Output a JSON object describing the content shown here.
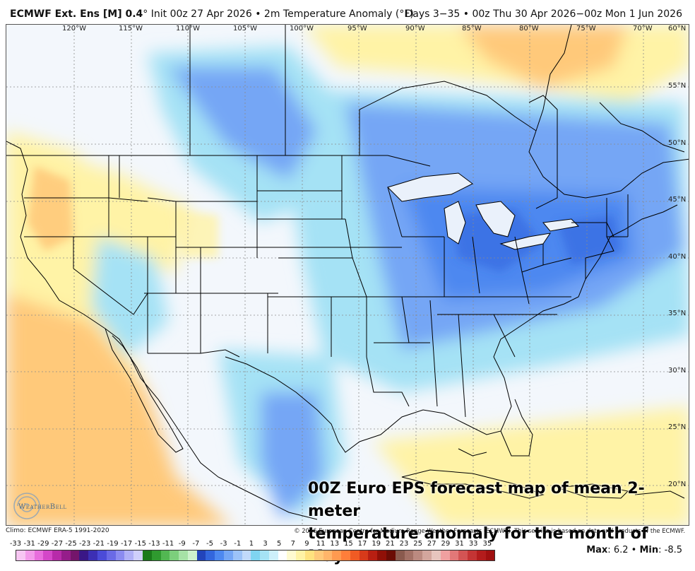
{
  "header": {
    "product": "ECMWF Ext. Ens [M] 0.4",
    "degree": "°",
    "init": "Init 00z 27 Apr 2026",
    "bullet": "•",
    "variable": "2m Temperature Anomaly (°F)",
    "valid": "Days 3−35 • 00z Thu 30 Apr 2026−00z Mon 1 Jun 2026"
  },
  "longitudes": [
    "120°W",
    "115°W",
    "110°W",
    "105°W",
    "100°W",
    "95°W",
    "90°W",
    "85°W",
    "80°W",
    "75°W",
    "70°W"
  ],
  "latitudes": [
    "60°N",
    "55°N",
    "50°N",
    "45°N",
    "40°N",
    "35°N",
    "30°N",
    "25°N",
    "20°N"
  ],
  "overlay": {
    "line1": "00Z Euro EPS forecast map of mean 2-meter",
    "line2": "temperature anomaly for the month of May"
  },
  "logo": {
    "text": "WeatherBell",
    "icon": "swirl-icon"
  },
  "footer": {
    "climo": "Climo: ECMWF ERA-5 1991-2020",
    "copyright": "© 2026 European Centre for Medium-Range Weather Forecasts (ECMWF). This service is based on data and products of the ECMWF."
  },
  "legend": {
    "labels": [
      "-33",
      "-31",
      "-29",
      "-27",
      "-25",
      "-23",
      "-21",
      "-19",
      "-17",
      "-15",
      "-13",
      "-11",
      "-9",
      "-7",
      "-5",
      "-3",
      "-1",
      "1",
      "3",
      "5",
      "7",
      "9",
      "11",
      "13",
      "15",
      "17",
      "19",
      "21",
      "23",
      "25",
      "27",
      "29",
      "31",
      "33",
      "35"
    ],
    "colors": [
      "#f7c6f2",
      "#f29ae9",
      "#e86ddc",
      "#d447c8",
      "#b72ba9",
      "#951d8a",
      "#74156b",
      "#3a1786",
      "#3c2fb4",
      "#4b4bd8",
      "#6a6ae6",
      "#8b8bf0",
      "#b0b0f6",
      "#cfcffb",
      "#1a7a1a",
      "#2f9a2f",
      "#52b752",
      "#7ccf7c",
      "#a6e2a6",
      "#cdf1cd",
      "#2244bb",
      "#3366dd",
      "#4d88f0",
      "#74a6f5",
      "#9cc3f8",
      "#c1dafb",
      "#7fd4f0",
      "#a5e2f5",
      "#cdf0fa",
      "#ffffff",
      "#fffbd1",
      "#fff3a6",
      "#ffe27f",
      "#ffc97a",
      "#ffb56a",
      "#ff9a50",
      "#ff7e3a",
      "#f05b24",
      "#d83a1a",
      "#b81f12",
      "#901007",
      "#6b0c05",
      "#8a5a4e",
      "#a37166",
      "#bb8a80",
      "#d3a69d",
      "#e7c5be",
      "#f0a0a0",
      "#e27878",
      "#d35454",
      "#c43434",
      "#b31c1c",
      "#a01010"
    ]
  },
  "stats": {
    "max_label": "Max",
    "max": "6.2",
    "sep": "•",
    "min_label": "Min",
    "min": "-8.5"
  },
  "colors": {
    "cold_strong": "#4d88f0",
    "cold": "#74a6f5",
    "cool": "#a5e2f5",
    "near_zero": "#f3f7fc",
    "warm": "#fff3a6",
    "warmer": "#ffc97a",
    "warmest": "#ff9a50"
  }
}
